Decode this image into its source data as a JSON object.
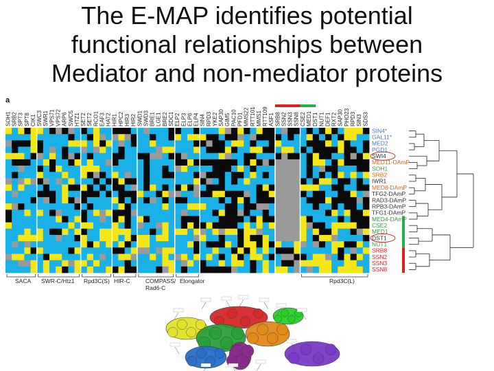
{
  "slide": {
    "title_lines": [
      "The E-MAP identifies potential",
      "functional relationships between",
      "Mediator and non-mediator proteins"
    ],
    "panel_label": "a"
  },
  "figure": {
    "column_labels": [
      "SOH1",
      "SRB2",
      "SPT3",
      "SPT8",
      "CIK1",
      "SWC3",
      "SWR1",
      "VPS71",
      "VPS72",
      "ARP6",
      "SWC5",
      "HTZ1",
      "SET2",
      "SET2",
      "RCO1",
      "EAF3",
      "HAT2",
      "HIR1",
      "HPC2",
      "HIR3",
      "HIR2",
      "SWD1",
      "SWD3",
      "BRE1",
      "LGE1",
      "BRE2",
      "SDC1",
      "ELP2",
      "ELP3",
      "ELP6",
      "ELP4",
      "SIN4",
      "RPD3",
      "YKE2",
      "SAP30",
      "GIM5",
      "PAC10",
      "PFD1",
      "MMS22",
      "RTT101",
      "MMS1",
      "RTT109",
      "ASF1",
      "SRB8",
      "SSN2",
      "SSN3",
      "SSN8",
      "CSE2",
      "MED1",
      "DST1",
      "NUT1",
      "DEF1",
      "RXT2",
      "SAP30",
      "PHO23",
      "RPD3",
      "SIN3",
      "SDS3"
    ],
    "row_labels": [
      {
        "text": "SIN4*",
        "color": "#4a78c8"
      },
      {
        "text": "GAL11*",
        "color": "#4a78c8"
      },
      {
        "text": "MED2",
        "color": "#4a78c8"
      },
      {
        "text": "PGD1",
        "color": "#4a78c8"
      },
      {
        "text": "SWI4",
        "color": "#333333"
      },
      {
        "text": "MED11-DAmP",
        "color": "#d2691e"
      },
      {
        "text": "SOH1",
        "color": "#2e9e3e"
      },
      {
        "text": "SRB2",
        "color": "#d2691e"
      },
      {
        "text": "IWR1",
        "color": "#333333"
      },
      {
        "text": "MED8-DAmP",
        "color": "#d2691e"
      },
      {
        "text": "TFG2-DAmP",
        "color": "#333333"
      },
      {
        "text": "RAD3-DAmP",
        "color": "#333333"
      },
      {
        "text": "RPB3-DAmP",
        "color": "#333333"
      },
      {
        "text": "TFG1-DAmP",
        "color": "#333333"
      },
      {
        "text": "MED4-DAmP",
        "color": "#2e9e3e"
      },
      {
        "text": "CSE2",
        "color": "#2e9e3e"
      },
      {
        "text": "MED1",
        "color": "#2e9e3e"
      },
      {
        "text": "DST1",
        "color": "#333333"
      },
      {
        "text": "NUT1",
        "color": "#2e9e3e"
      },
      {
        "text": "SRB8",
        "color": "#d62828"
      },
      {
        "text": "SSN2",
        "color": "#d62828"
      },
      {
        "text": "SSN3",
        "color": "#d62828"
      },
      {
        "text": "SSN8",
        "color": "#d62828"
      }
    ],
    "group_labels": [
      {
        "line1": "SACA",
        "line2": ""
      },
      {
        "line1": "SWR-C/Htz1",
        "line2": ""
      },
      {
        "line1": "Rpd3C(S)",
        "line2": ""
      },
      {
        "line1": "HIR-C",
        "line2": ""
      },
      {
        "line1": "COMPASS/",
        "line2": "Rad6-C"
      },
      {
        "line1": "Elongator",
        "line2": ""
      },
      {
        "line1": "Rpd3C(L)",
        "line2": ""
      }
    ],
    "colors": {
      "positive": "#f5e617",
      "negative": "#1ab0e8",
      "neutral": "#0a0a0a",
      "missing": "#9a9a9a",
      "marker_red": "#e02020",
      "marker_green": "#22b14c",
      "highlight_circle": "#c0392b"
    }
  },
  "diagram": {
    "modules": [
      {
        "name": "Cdk8",
        "color": "#d42a2a"
      },
      {
        "name": "Head",
        "color": "#e2e22a"
      },
      {
        "name": "Middle",
        "color": "#2aa03a"
      },
      {
        "name": "Tail",
        "color": "#e08a1a"
      },
      {
        "name": "TFIIH",
        "color": "#2a6fc8"
      },
      {
        "name": "RNA Pol II",
        "color": "#7a3ac8"
      },
      {
        "name": "TFIIB",
        "color": "#2ad02a"
      },
      {
        "name": "TFIID",
        "color": "#8a2a8a"
      }
    ]
  }
}
